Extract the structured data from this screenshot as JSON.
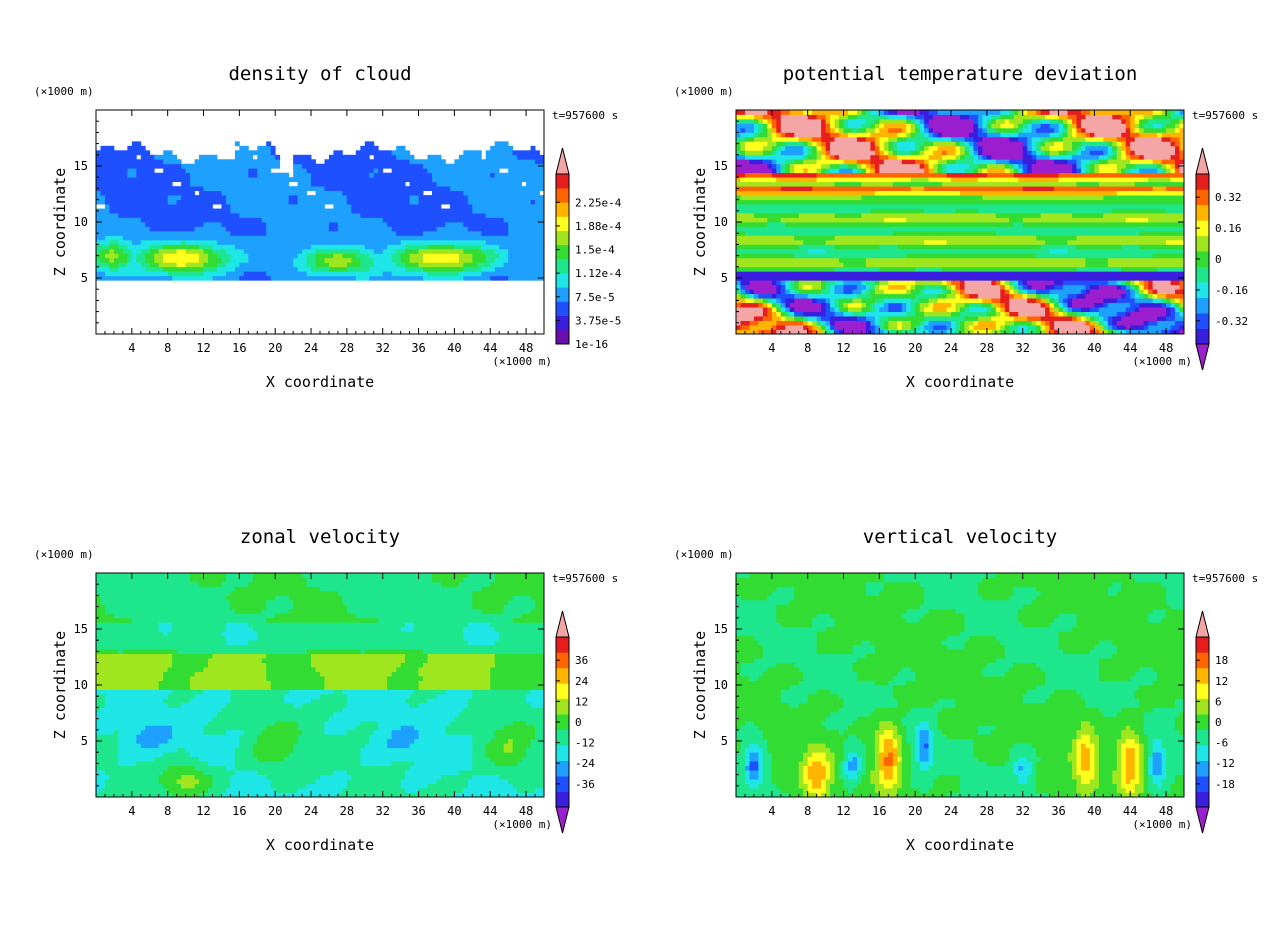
{
  "chart_data": [
    {
      "type": "heatmap",
      "title": "density of cloud",
      "xlabel": "X coordinate",
      "ylabel": "Z coordinate",
      "x_unit": "(×1000 m)",
      "y_unit": "(×1000 m)",
      "time_label": "t=957600 s",
      "xlim": [
        0,
        50
      ],
      "ylim": [
        0,
        20
      ],
      "xticks": [
        4,
        8,
        12,
        16,
        20,
        24,
        28,
        32,
        36,
        40,
        44,
        48
      ],
      "yticks": [
        5,
        10,
        15
      ],
      "field": "cloud",
      "colorbar": {
        "labels": [
          "1e-16",
          "3.75e-5",
          "7.5e-5",
          "1.12e-4",
          "1.5e-4",
          "1.88e-4",
          "2.25e-4"
        ],
        "colors": [
          "#6a0dad",
          "#3a1ee0",
          "#1e50ff",
          "#1ea0ff",
          "#1ee6e6",
          "#1ee68c",
          "#32dc32",
          "#a0e61e",
          "#ffff1e",
          "#ffb400",
          "#ff6400",
          "#e61e1e"
        ],
        "extend_low": false,
        "extend_high": true
      }
    },
    {
      "type": "heatmap",
      "title": "potential temperature deviation",
      "xlabel": "X coordinate",
      "ylabel": "Z coordinate",
      "x_unit": "(×1000 m)",
      "y_unit": "(×1000 m)",
      "time_label": "t=957600 s",
      "xlim": [
        0,
        50
      ],
      "ylim": [
        0,
        20
      ],
      "xticks": [
        4,
        8,
        12,
        16,
        20,
        24,
        28,
        32,
        36,
        40,
        44,
        48
      ],
      "yticks": [
        5,
        10,
        15
      ],
      "field": "theta",
      "colorbar": {
        "labels": [
          "-0.32",
          "-0.16",
          "0",
          "0.16",
          "0.32"
        ],
        "colors": [
          "#3a1ee0",
          "#1e50ff",
          "#1ea0ff",
          "#1ee6e6",
          "#1ee68c",
          "#32dc32",
          "#a0e61e",
          "#ffff1e",
          "#ffb400",
          "#ff6400",
          "#e61e1e"
        ],
        "extend_low": true,
        "extend_high": true
      }
    },
    {
      "type": "heatmap",
      "title": "zonal velocity",
      "xlabel": "X coordinate",
      "ylabel": "Z coordinate",
      "x_unit": "(×1000 m)",
      "y_unit": "(×1000 m)",
      "time_label": "t=957600 s",
      "xlim": [
        0,
        50
      ],
      "ylim": [
        0,
        20
      ],
      "xticks": [
        4,
        8,
        12,
        16,
        20,
        24,
        28,
        32,
        36,
        40,
        44,
        48
      ],
      "yticks": [
        5,
        10,
        15
      ],
      "field": "u",
      "colorbar": {
        "labels": [
          "-36",
          "-24",
          "-12",
          "0",
          "12",
          "24",
          "36"
        ],
        "colors": [
          "#3a1ee0",
          "#1e50ff",
          "#1ea0ff",
          "#1ee6e6",
          "#1ee68c",
          "#32dc32",
          "#a0e61e",
          "#ffff1e",
          "#ffb400",
          "#ff6400",
          "#e61e1e"
        ],
        "extend_low": true,
        "extend_high": true
      }
    },
    {
      "type": "heatmap",
      "title": "vertical velocity",
      "xlabel": "X coordinate",
      "ylabel": "Z coordinate",
      "x_unit": "(×1000 m)",
      "y_unit": "(×1000 m)",
      "time_label": "t=957600 s",
      "xlim": [
        0,
        50
      ],
      "ylim": [
        0,
        20
      ],
      "xticks": [
        4,
        8,
        12,
        16,
        20,
        24,
        28,
        32,
        36,
        40,
        44,
        48
      ],
      "yticks": [
        5,
        10,
        15
      ],
      "field": "w",
      "colorbar": {
        "labels": [
          "-18",
          "-12",
          "-6",
          "0",
          "6",
          "12",
          "18"
        ],
        "colors": [
          "#3a1ee0",
          "#1e50ff",
          "#1ea0ff",
          "#1ee6e6",
          "#1ee68c",
          "#32dc32",
          "#a0e61e",
          "#ffff1e",
          "#ffb400",
          "#ff6400",
          "#e61e1e"
        ],
        "extend_low": true,
        "extend_high": true
      }
    }
  ],
  "colors": {
    "extend_high": "#f4a6a6",
    "extend_low": "#9b1fcf",
    "frame": "#000000"
  }
}
